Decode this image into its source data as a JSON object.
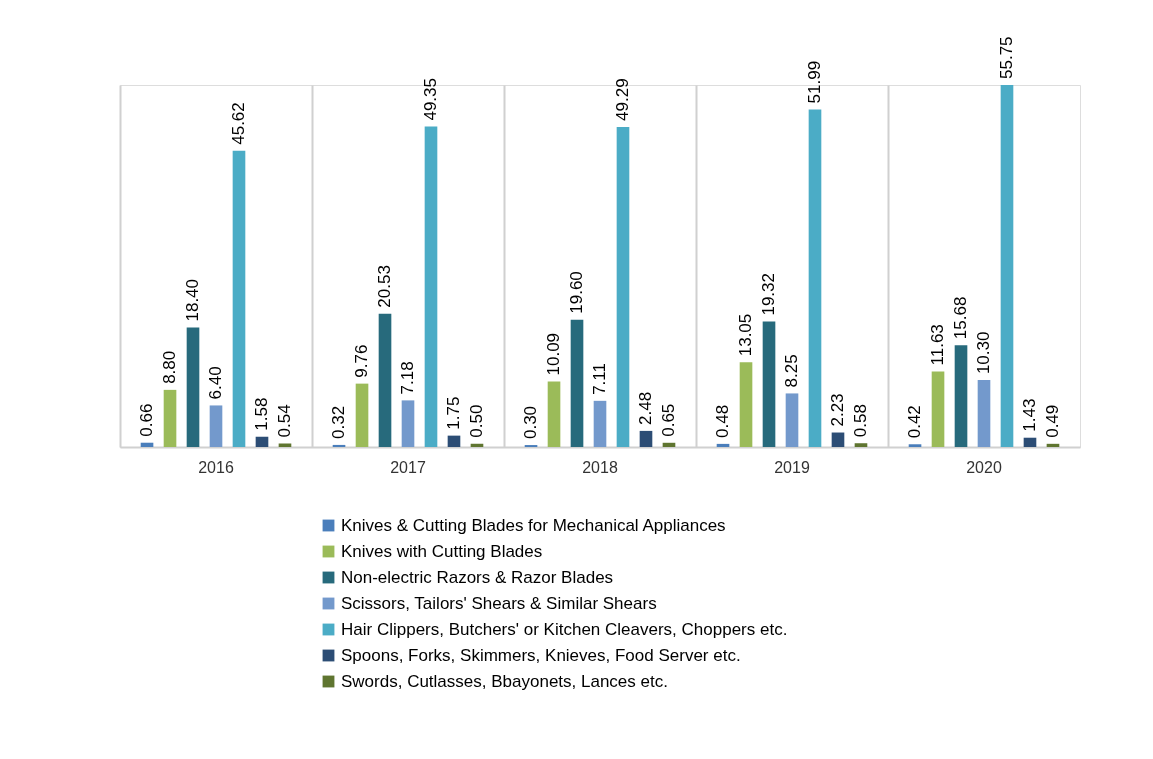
{
  "chart_data": {
    "type": "bar",
    "categories": [
      "2016",
      "2017",
      "2018",
      "2019",
      "2020"
    ],
    "series": [
      {
        "name": "Knives & Cutting Blades for Mechanical Appliances",
        "color": "#4a7ebb",
        "values": [
          0.66,
          0.32,
          0.3,
          0.48,
          0.42
        ],
        "value_labels": [
          "0.66",
          "0.32",
          "0.30",
          "0.48",
          "0.42"
        ]
      },
      {
        "name": "Knives with Cutting Blades",
        "color": "#9bbb59",
        "values": [
          8.8,
          9.76,
          10.09,
          13.05,
          11.63
        ],
        "value_labels": [
          "8.80",
          "9.76",
          "10.09",
          "13.05",
          "11.63"
        ]
      },
      {
        "name": "Non-electric Razors & Razor Blades",
        "color": "#276a7c",
        "values": [
          18.4,
          20.53,
          19.6,
          19.32,
          15.68
        ],
        "value_labels": [
          "18.40",
          "20.53",
          "19.60",
          "19.32",
          "15.68"
        ]
      },
      {
        "name": "Scissors, Tailors' Shears & Similar Shears",
        "color": "#7399cc",
        "values": [
          6.4,
          7.18,
          7.11,
          8.25,
          10.3
        ],
        "value_labels": [
          "6.40",
          "7.18",
          "7.11",
          "8.25",
          "10.30"
        ]
      },
      {
        "name": "Hair Clippers, Butchers' or Kitchen Cleavers, Choppers etc.",
        "color": "#4bacc6",
        "values": [
          45.62,
          49.35,
          49.29,
          51.99,
          55.75
        ],
        "value_labels": [
          "45.62",
          "49.35",
          "49.29",
          "51.99",
          "55.75"
        ]
      },
      {
        "name": "Spoons, Forks, Skimmers, Knieves, Food Server etc.",
        "color": "#2c4d75",
        "values": [
          1.58,
          1.75,
          2.48,
          2.23,
          1.43
        ],
        "value_labels": [
          "1.58",
          "1.75",
          "2.48",
          "2.23",
          "1.43"
        ]
      },
      {
        "name": "Swords, Cutlasses, Bbayonets, Lances etc.",
        "color": "#5f7530",
        "values": [
          0.54,
          0.5,
          0.65,
          0.58,
          0.49
        ],
        "value_labels": [
          "0.54",
          "0.50",
          "0.65",
          "0.58",
          "0.49"
        ]
      }
    ],
    "legend": "bottom",
    "grid": "x"
  }
}
